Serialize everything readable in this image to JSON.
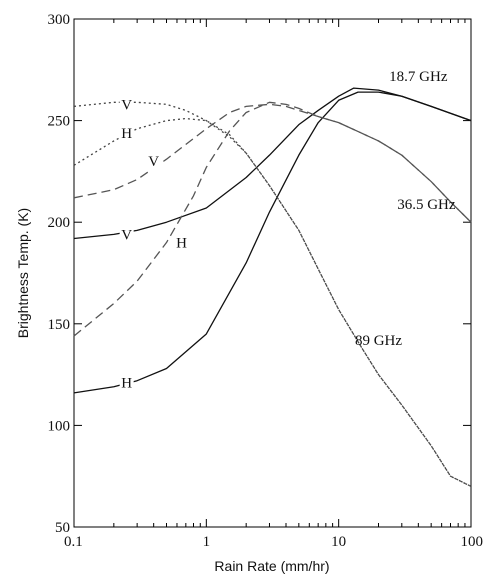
{
  "chart_data": {
    "type": "line",
    "title": "",
    "xlabel": "Rain Rate (mm/hr)",
    "ylabel": "Brightness Temp. (K)",
    "xscale": "log",
    "xlim": [
      0.1,
      100
    ],
    "ylim": [
      50,
      300
    ],
    "grid": false,
    "legend": "none",
    "x_ticks": [
      {
        "value": 0.1,
        "label": "0.1"
      },
      {
        "value": 1,
        "label": "1"
      },
      {
        "value": 10,
        "label": "10"
      },
      {
        "value": 100,
        "label": "100"
      }
    ],
    "y_ticks": [
      {
        "value": 50,
        "label": "50"
      },
      {
        "value": 100,
        "label": "100"
      },
      {
        "value": 150,
        "label": "150"
      },
      {
        "value": 200,
        "label": "200"
      },
      {
        "value": 250,
        "label": "250"
      },
      {
        "value": 300,
        "label": "300"
      }
    ],
    "series": [
      {
        "style": "solid",
        "x": [
          0.1,
          0.2,
          0.3,
          0.5,
          1,
          2,
          3,
          5,
          7,
          10,
          13,
          20,
          30,
          50,
          100
        ],
        "y": [
          192,
          194,
          196,
          200,
          207,
          222,
          233,
          248,
          255,
          262,
          266,
          265,
          262,
          257,
          250
        ]
      },
      {
        "style": "solid",
        "x": [
          0.1,
          0.2,
          0.3,
          0.5,
          1,
          2,
          3,
          5,
          7,
          10,
          14,
          20,
          30,
          50,
          100
        ],
        "y": [
          116,
          119,
          122,
          128,
          145,
          180,
          205,
          233,
          249,
          260,
          264,
          264,
          262,
          257,
          250
        ]
      },
      {
        "style": "dashed",
        "x": [
          0.1,
          0.2,
          0.3,
          0.5,
          1,
          1.5,
          2,
          3,
          4,
          5,
          7,
          10,
          20,
          30,
          50,
          70,
          100
        ],
        "y": [
          212,
          216,
          221,
          231,
          246,
          254,
          257,
          258,
          257,
          255,
          252,
          249,
          240,
          233,
          220,
          210,
          200
        ]
      },
      {
        "style": "dashed",
        "x": [
          0.1,
          0.2,
          0.3,
          0.5,
          0.8,
          1,
          1.5,
          2,
          3,
          4,
          5,
          7,
          10,
          20,
          30,
          50,
          70,
          100
        ],
        "y": [
          144,
          160,
          171,
          190,
          213,
          227,
          245,
          254,
          259,
          258,
          256,
          252,
          249,
          240,
          233,
          220,
          210,
          200
        ]
      },
      {
        "style": "dotted",
        "x": [
          0.1,
          0.2,
          0.3,
          0.5,
          0.7,
          1,
          1.5,
          2,
          3,
          5,
          7,
          10,
          15,
          20,
          30,
          50,
          70,
          100
        ],
        "y": [
          257,
          259,
          259,
          258,
          255,
          250,
          242,
          234,
          218,
          196,
          177,
          157,
          138,
          125,
          110,
          90,
          75,
          70
        ]
      },
      {
        "style": "dotted",
        "x": [
          0.1,
          0.2,
          0.3,
          0.5,
          0.7,
          1,
          1.5,
          2,
          3,
          5,
          7,
          10,
          15,
          20,
          30,
          50,
          70,
          100
        ],
        "y": [
          228,
          240,
          246,
          250,
          251,
          250,
          243,
          234,
          218,
          196,
          177,
          157,
          138,
          125,
          110,
          90,
          75,
          70
        ]
      }
    ],
    "annotations": [
      {
        "text": "18.7 GHz",
        "x": 40,
        "y": 272
      },
      {
        "text": "36.5 GHz",
        "x": 46,
        "y": 209
      },
      {
        "text": "89 GHz",
        "x": 20,
        "y": 142
      },
      {
        "text": "V",
        "x": 0.25,
        "y": 258
      },
      {
        "text": "H",
        "x": 0.25,
        "y": 244
      },
      {
        "text": "V",
        "x": 0.4,
        "y": 230
      },
      {
        "text": "V",
        "x": 0.25,
        "y": 194
      },
      {
        "text": "H",
        "x": 0.65,
        "y": 190
      },
      {
        "text": "H",
        "x": 0.25,
        "y": 121
      }
    ]
  }
}
